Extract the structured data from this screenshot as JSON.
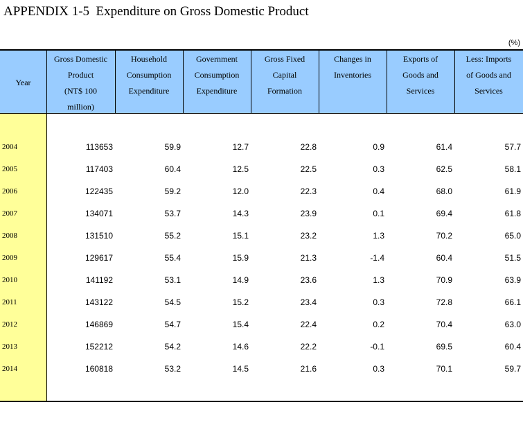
{
  "title": "APPENDIX 1-5  Expenditure on Gross Domestic Product",
  "unit_note": "(%)",
  "columns": [
    [
      "Year"
    ],
    [
      "Gross Domestic",
      "Product",
      "(NT$ 100",
      "million)"
    ],
    [
      "Household",
      "Consumption",
      "Expenditure"
    ],
    [
      "Government",
      "Consumption",
      "Expenditure"
    ],
    [
      "Gross Fixed",
      "Capital",
      "Formation"
    ],
    [
      "Changes in",
      "Inventories"
    ],
    [
      "Exports of",
      "Goods and",
      "Services"
    ],
    [
      "Less: Imports",
      "of Goods and",
      "Services"
    ]
  ],
  "rows": [
    [
      "2004",
      "113653",
      "59.9",
      "12.7",
      "22.8",
      "0.9",
      "61.4",
      "57.7"
    ],
    [
      "2005",
      "117403",
      "60.4",
      "12.5",
      "22.5",
      "0.3",
      "62.5",
      "58.1"
    ],
    [
      "2006",
      "122435",
      "59.2",
      "12.0",
      "22.3",
      "0.4",
      "68.0",
      "61.9"
    ],
    [
      "2007",
      "134071",
      "53.7",
      "14.3",
      "23.9",
      "0.1",
      "69.4",
      "61.8"
    ],
    [
      "2008",
      "131510",
      "55.2",
      "15.1",
      "23.2",
      "1.3",
      "70.2",
      "65.0"
    ],
    [
      "2009",
      "129617",
      "55.4",
      "15.9",
      "21.3",
      "-1.4",
      "60.4",
      "51.5"
    ],
    [
      "2010",
      "141192",
      "53.1",
      "14.9",
      "23.6",
      "1.3",
      "70.9",
      "63.9"
    ],
    [
      "2011",
      "143122",
      "54.5",
      "15.2",
      "23.4",
      "0.3",
      "72.8",
      "66.1"
    ],
    [
      "2012",
      "146869",
      "54.7",
      "15.4",
      "22.4",
      "0.2",
      "70.4",
      "63.0"
    ],
    [
      "2013",
      "152212",
      "54.2",
      "14.6",
      "22.2",
      "-0.1",
      "69.5",
      "60.4"
    ],
    [
      "2014",
      "160818",
      "53.2",
      "14.5",
      "21.6",
      "0.3",
      "70.1",
      "59.7"
    ]
  ],
  "colors": {
    "header_bg": "#99ccff",
    "year_col_bg": "#ffff99"
  }
}
